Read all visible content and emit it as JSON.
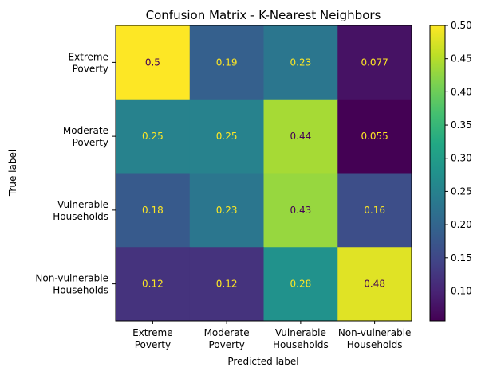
{
  "chart_data": {
    "type": "heatmap",
    "title": "Confusion Matrix - K-Nearest Neighbors",
    "xlabel": "Predicted label",
    "ylabel": "True label",
    "x_categories": [
      [
        "Extreme",
        "Poverty"
      ],
      [
        "Moderate",
        "Poverty"
      ],
      [
        "Vulnerable",
        "Households"
      ],
      [
        "Non-vulnerable",
        "Households"
      ]
    ],
    "y_categories": [
      [
        "Extreme",
        "Poverty"
      ],
      [
        "Moderate",
        "Poverty"
      ],
      [
        "Vulnerable",
        "Households"
      ],
      [
        "Non-vulnerable",
        "Households"
      ]
    ],
    "values": [
      [
        0.5,
        0.19,
        0.23,
        0.077
      ],
      [
        0.25,
        0.25,
        0.44,
        0.055
      ],
      [
        0.18,
        0.23,
        0.43,
        0.16
      ],
      [
        0.12,
        0.12,
        0.28,
        0.48
      ]
    ],
    "value_labels": [
      [
        "0.5",
        "0.19",
        "0.23",
        "0.077"
      ],
      [
        "0.25",
        "0.25",
        "0.44",
        "0.055"
      ],
      [
        "0.18",
        "0.23",
        "0.43",
        "0.16"
      ],
      [
        "0.12",
        "0.12",
        "0.28",
        "0.48"
      ]
    ],
    "colormap": "viridis",
    "colorbar": {
      "vmin": 0.055,
      "vmax": 0.5,
      "ticks": [
        "0.10",
        "0.15",
        "0.20",
        "0.25",
        "0.30",
        "0.35",
        "0.40",
        "0.45",
        "0.50"
      ]
    },
    "grid": false,
    "text_colors": {
      "on_dark": "#fde725",
      "on_light": "#440154"
    }
  }
}
